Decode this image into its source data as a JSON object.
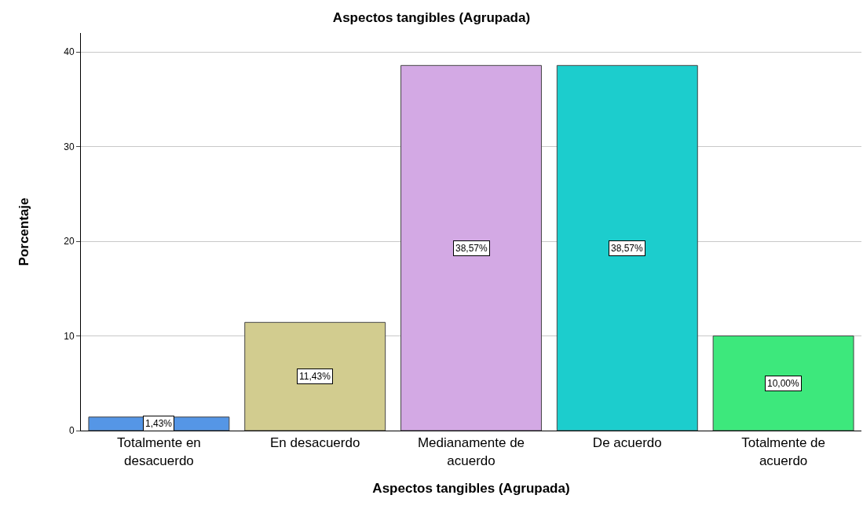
{
  "chart_data": {
    "type": "bar",
    "title": "Aspectos tangibles (Agrupada)",
    "xlabel": "Aspectos tangibles (Agrupada)",
    "ylabel": "Porcentaje",
    "categories": [
      "Totalmente en desacuerdo",
      "En desacuerdo",
      "Medianamente de acuerdo",
      "De acuerdo",
      "Totalmente de acuerdo"
    ],
    "values": [
      1.43,
      11.43,
      38.57,
      38.57,
      10.0
    ],
    "colors": [
      "#5596e6",
      "#d2cc8f",
      "#d3a9e4",
      "#1ccdcd",
      "#3de87c"
    ],
    "value_labels": [
      "1,43%",
      "11,43%",
      "38,57%",
      "38,57%",
      "10,00%"
    ],
    "ylim": [
      0,
      42
    ],
    "yticks": [
      0,
      10,
      20,
      30,
      40
    ],
    "grid": "y",
    "legend": false
  }
}
